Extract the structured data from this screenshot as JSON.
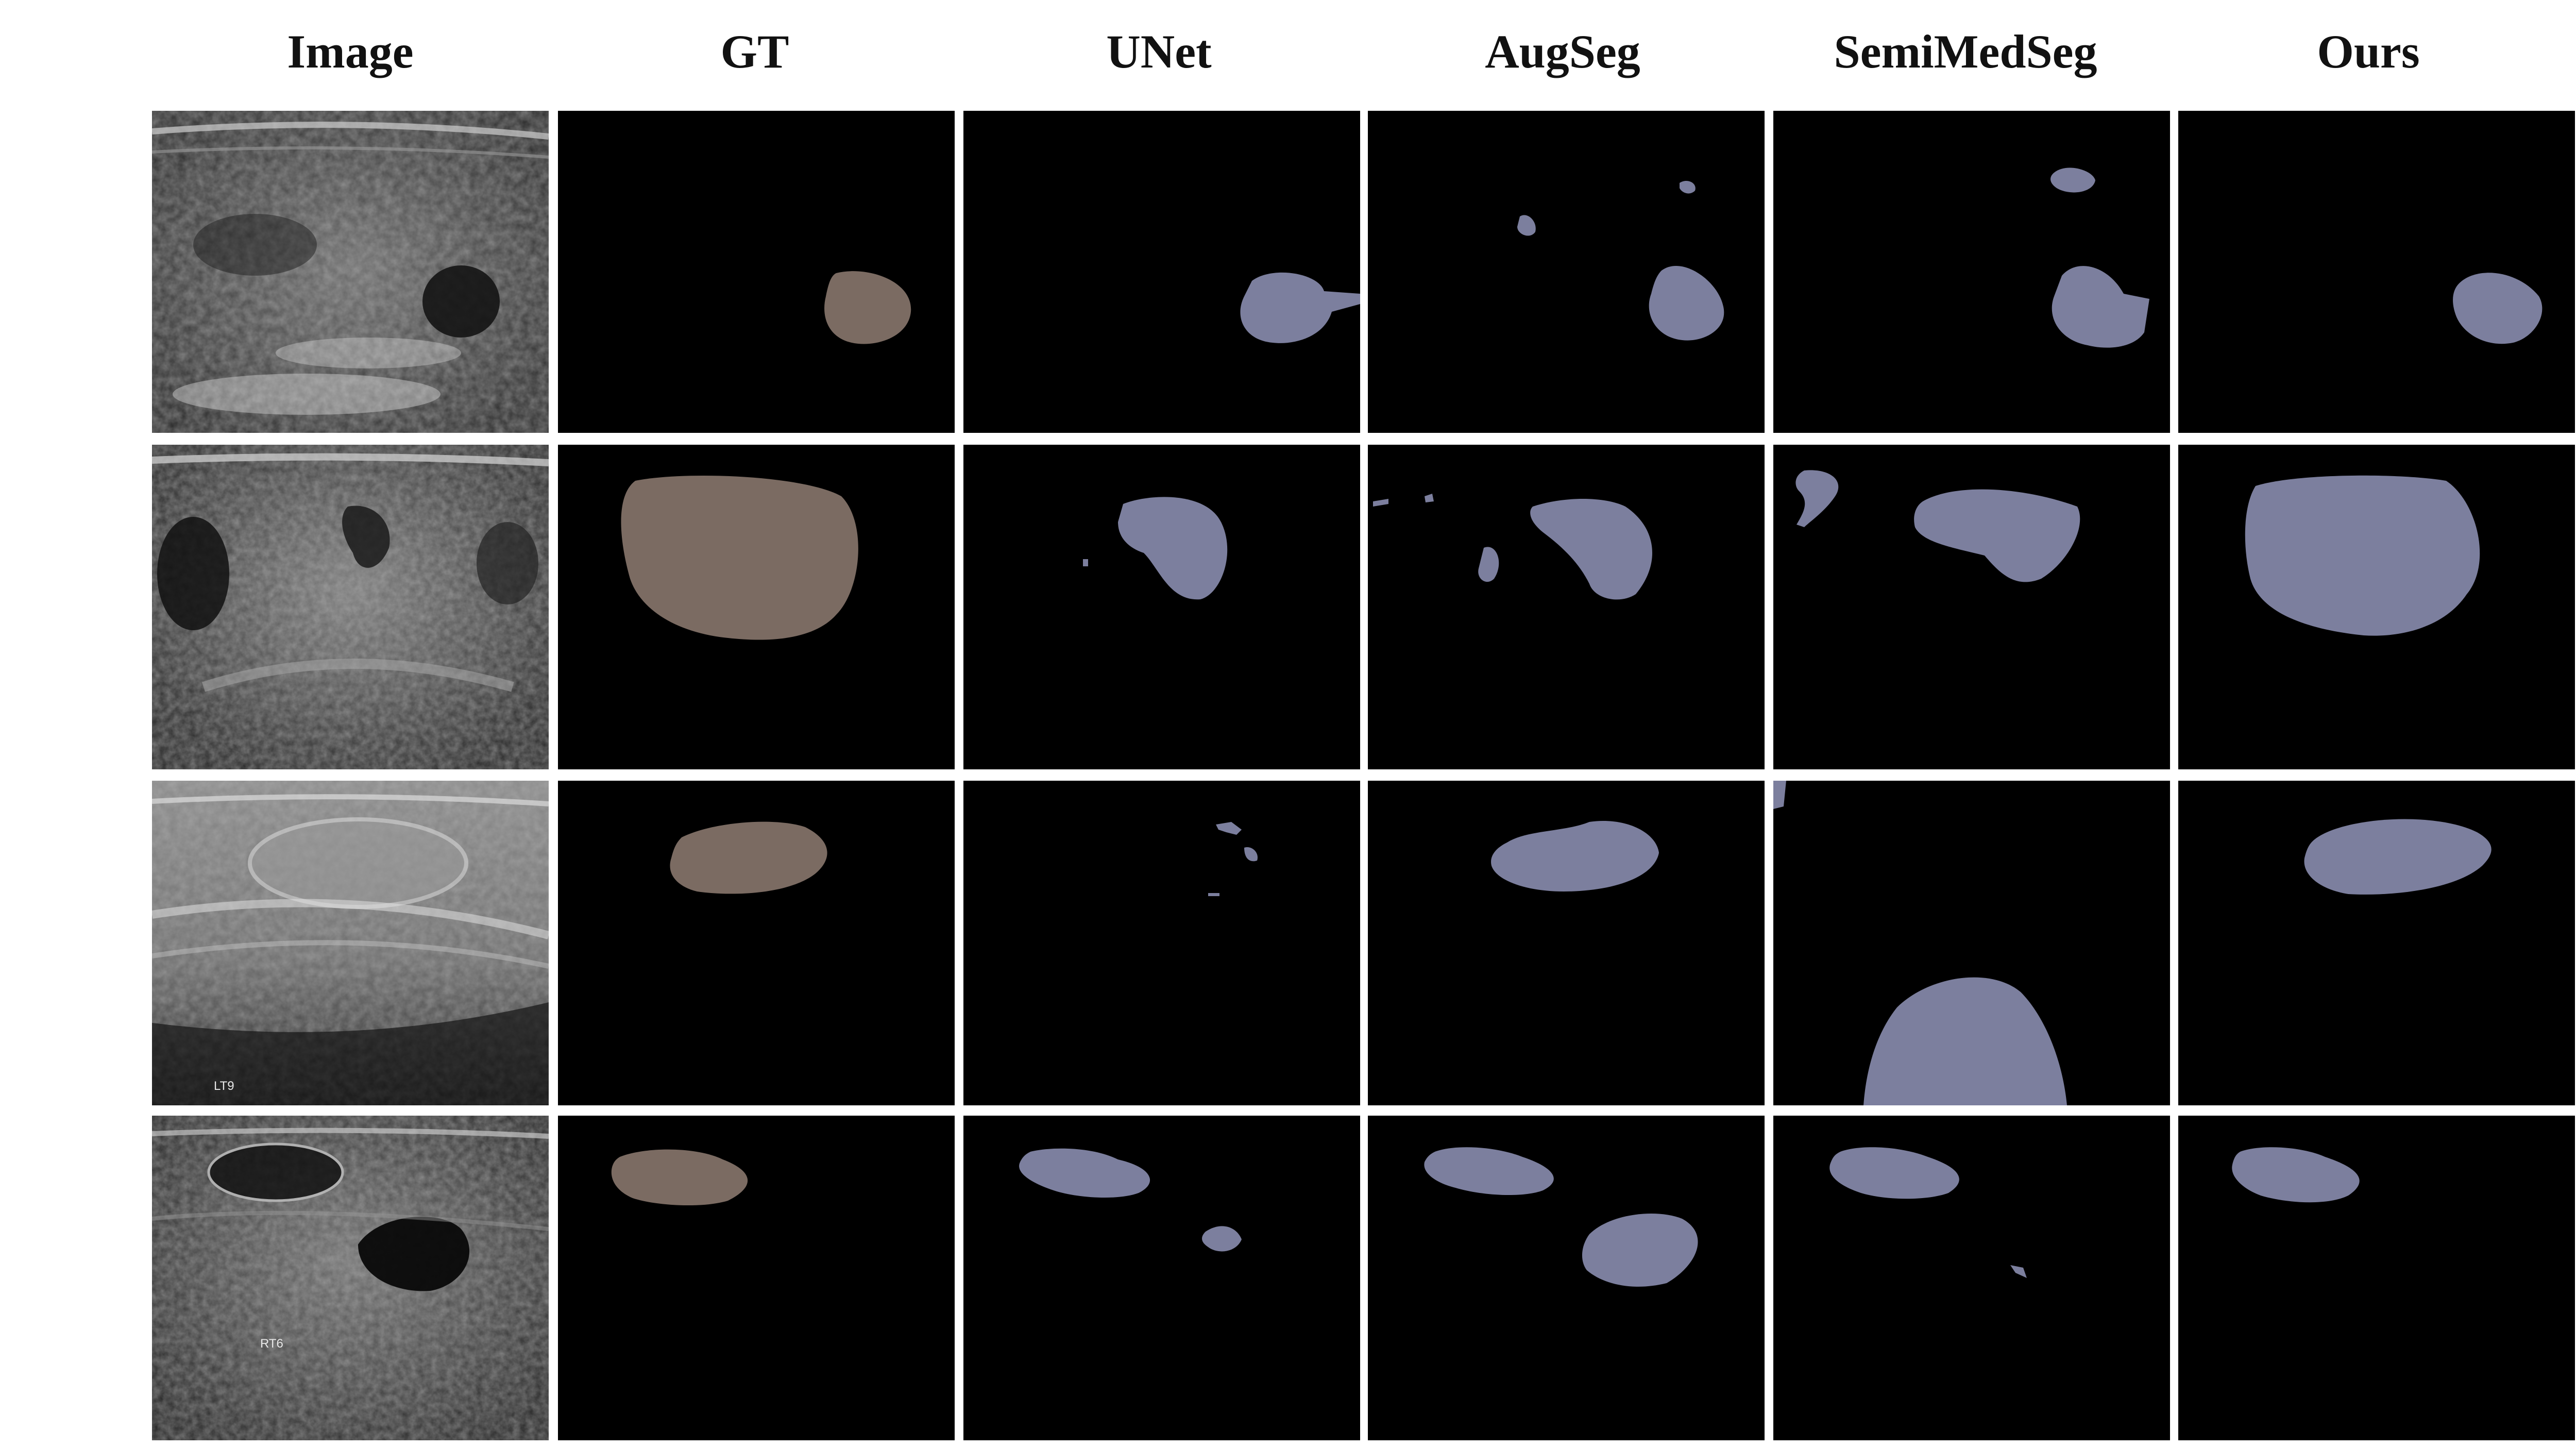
{
  "figure": {
    "columns": [
      "Image",
      "GT",
      "UNet",
      "AugSeg",
      "SemiMedSeg",
      "Ours"
    ],
    "row_count": 4,
    "colors": {
      "background": "#ffffff",
      "panel_background": "#000000",
      "ground_truth_mask": "#7b6b62",
      "prediction_mask": "#7c7f9e",
      "ultrasound_base": "#3a3a3a"
    },
    "ultrasound_annotations": {
      "row3": "LT9",
      "row4": "RT6"
    }
  }
}
